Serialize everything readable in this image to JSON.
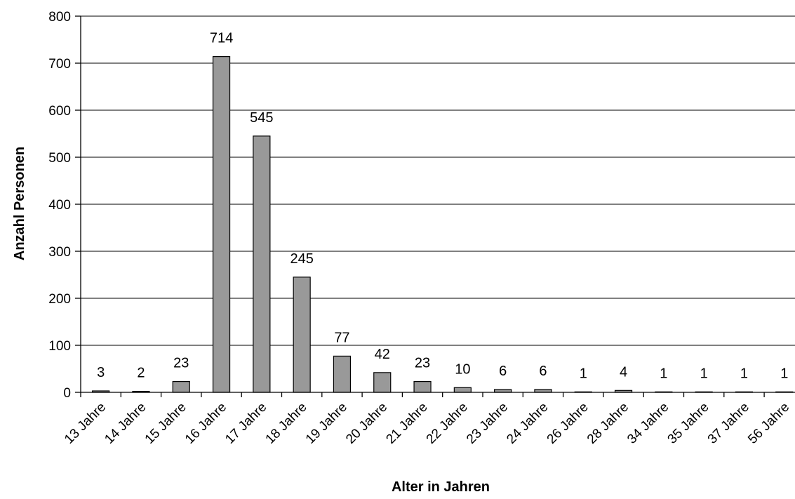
{
  "chart_data": {
    "type": "bar",
    "title": "",
    "xlabel": "Alter in Jahren",
    "ylabel": "Anzahl Personen",
    "ylim": [
      0,
      800
    ],
    "yticks": [
      0,
      100,
      200,
      300,
      400,
      500,
      600,
      700,
      800
    ],
    "grid": true,
    "legend": "none",
    "bar_color": "#999999",
    "categories": [
      "13 Jahre",
      "14 Jahre",
      "15 Jahre",
      "16 Jahre",
      "17 Jahre",
      "18 Jahre",
      "19 Jahre",
      "20 Jahre",
      "21 Jahre",
      "22 Jahre",
      "23 Jahre",
      "24 Jahre",
      "26 Jahre",
      "28 Jahre",
      "34 Jahre",
      "35 Jahre",
      "37 Jahre",
      "56 Jahre"
    ],
    "values": [
      3,
      2,
      23,
      714,
      545,
      245,
      77,
      42,
      23,
      10,
      6,
      6,
      1,
      4,
      1,
      1,
      1,
      1
    ]
  }
}
